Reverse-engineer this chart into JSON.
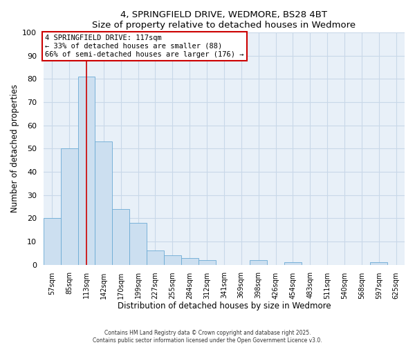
{
  "title": "4, SPRINGFIELD DRIVE, WEDMORE, BS28 4BT",
  "subtitle": "Size of property relative to detached houses in Wedmore",
  "xlabel": "Distribution of detached houses by size in Wedmore",
  "ylabel": "Number of detached properties",
  "bar_labels": [
    "57sqm",
    "85sqm",
    "113sqm",
    "142sqm",
    "170sqm",
    "199sqm",
    "227sqm",
    "255sqm",
    "284sqm",
    "312sqm",
    "341sqm",
    "369sqm",
    "398sqm",
    "426sqm",
    "454sqm",
    "483sqm",
    "511sqm",
    "540sqm",
    "568sqm",
    "597sqm",
    "625sqm"
  ],
  "bar_values": [
    20,
    50,
    81,
    53,
    24,
    18,
    6,
    4,
    3,
    2,
    0,
    0,
    2,
    0,
    1,
    0,
    0,
    0,
    0,
    1,
    0
  ],
  "bar_color": "#ccdff0",
  "bar_edge_color": "#6aaad4",
  "ylim": [
    0,
    100
  ],
  "yticks": [
    0,
    10,
    20,
    30,
    40,
    50,
    60,
    70,
    80,
    90,
    100
  ],
  "vline_x": 2,
  "vline_color": "#cc0000",
  "annotation_title": "4 SPRINGFIELD DRIVE: 117sqm",
  "annotation_line1": "← 33% of detached houses are smaller (88)",
  "annotation_line2": "66% of semi-detached houses are larger (176) →",
  "annotation_box_color": "#cc0000",
  "footer_line1": "Contains HM Land Registry data © Crown copyright and database right 2025.",
  "footer_line2": "Contains public sector information licensed under the Open Government Licence v3.0.",
  "bg_color": "#ffffff",
  "plot_bg_color": "#e8f0f8",
  "grid_color": "#c8d8e8"
}
